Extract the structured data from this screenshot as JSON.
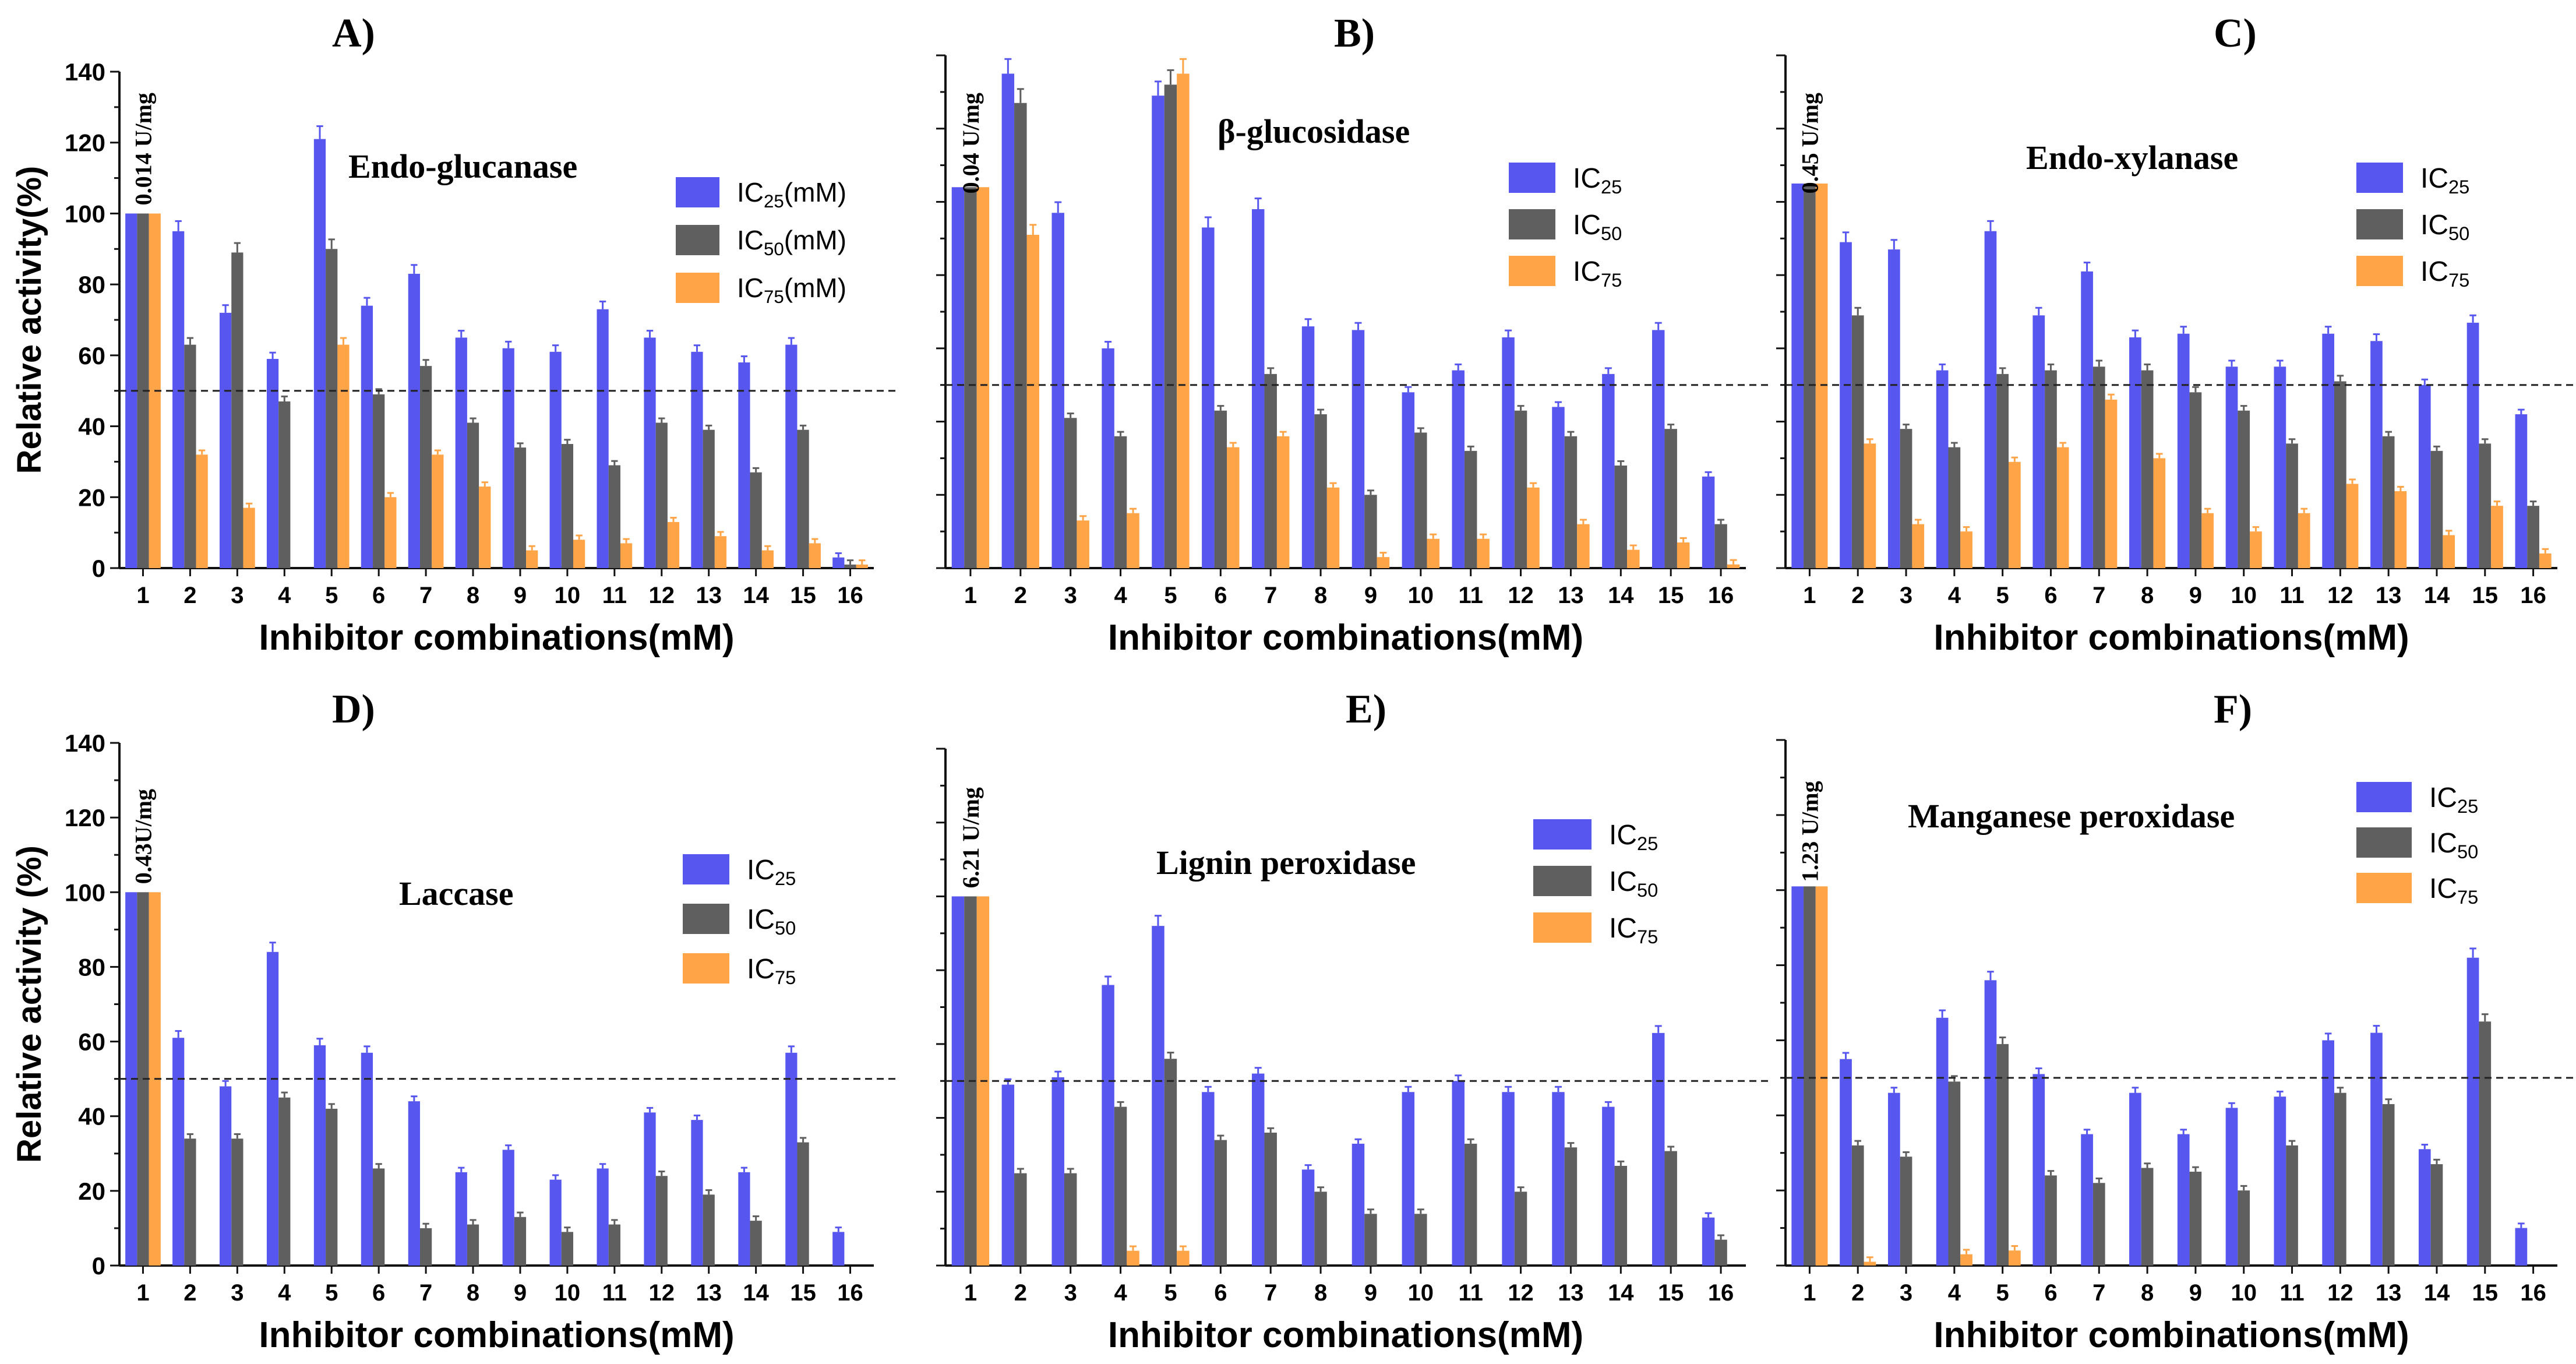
{
  "colors": {
    "ic25": "#5757f0",
    "ic50": "#5f5f5f",
    "ic75": "#ffa447",
    "axis": "#111111",
    "ref": "#222222"
  },
  "common": {
    "xlabel": "Inhibitor combinations(mM)",
    "ylabel_top": "Relative activity(%)",
    "ylabel_bottom": "Relative activity (%)",
    "categories": [
      "1",
      "2",
      "3",
      "4",
      "5",
      "6",
      "7",
      "8",
      "9",
      "10",
      "11",
      "12",
      "13",
      "14",
      "15",
      "16"
    ],
    "yticks": [
      "0",
      "20",
      "40",
      "60",
      "80",
      "100",
      "120",
      "140"
    ],
    "ylim": [
      0,
      140
    ],
    "reference_line": 50
  },
  "chart_data": [
    {
      "panel": "A)",
      "type": "bar",
      "title": "Endo-glucanase",
      "specific_activity": "0.014 U/mg",
      "legend": [
        "IC25(mM)",
        "IC50(mM)",
        "IC75(mM)"
      ],
      "legend_parts": [
        [
          "IC",
          "25",
          "(mM)"
        ],
        [
          "IC",
          "50",
          "(mM)"
        ],
        [
          "IC",
          "75",
          "(mM)"
        ]
      ],
      "series": [
        {
          "name": "IC25",
          "values": [
            100,
            95,
            72,
            59,
            121,
            74,
            83,
            65,
            62,
            61,
            73,
            65,
            61,
            58,
            63,
            3
          ]
        },
        {
          "name": "IC50",
          "values": [
            100,
            63,
            89,
            47,
            90,
            49,
            57,
            41,
            34,
            35,
            29,
            41,
            39,
            27,
            39,
            1
          ]
        },
        {
          "name": "IC75",
          "values": [
            100,
            32,
            17,
            0,
            63,
            20,
            32,
            23,
            5,
            8,
            7,
            13,
            9,
            5,
            7,
            1
          ]
        }
      ]
    },
    {
      "panel": "B)",
      "type": "bar",
      "title": "β-glucosidase",
      "specific_activity": "0.04 U/mg",
      "legend": [
        "IC25",
        "IC50",
        "IC75"
      ],
      "legend_parts": [
        [
          "IC",
          "25",
          ""
        ],
        [
          "IC",
          "50",
          ""
        ],
        [
          "IC",
          "75",
          ""
        ]
      ],
      "series": [
        {
          "name": "IC25",
          "values": [
            104,
            135,
            97,
            60,
            129,
            93,
            98,
            66,
            65,
            48,
            54,
            63,
            44,
            53,
            65,
            25
          ]
        },
        {
          "name": "IC50",
          "values": [
            104,
            127,
            41,
            36,
            132,
            43,
            53,
            42,
            20,
            37,
            32,
            43,
            36,
            28,
            38,
            12
          ]
        },
        {
          "name": "IC75",
          "values": [
            104,
            91,
            13,
            15,
            135,
            33,
            36,
            22,
            3,
            8,
            8,
            22,
            12,
            5,
            7,
            1
          ]
        }
      ]
    },
    {
      "panel": "C)",
      "type": "bar",
      "title": "Endo-xylanase",
      "specific_activity": "0.45 U/mg",
      "legend": [
        "IC25",
        "IC50",
        "IC75"
      ],
      "legend_parts": [
        [
          "IC",
          "25",
          ""
        ],
        [
          "IC",
          "50",
          ""
        ],
        [
          "IC",
          "75",
          ""
        ]
      ],
      "series": [
        {
          "name": "IC25",
          "values": [
            105,
            89,
            87,
            54,
            92,
            69,
            81,
            63,
            64,
            55,
            55,
            64,
            62,
            50,
            67,
            42
          ]
        },
        {
          "name": "IC50",
          "values": [
            105,
            69,
            38,
            33,
            53,
            54,
            55,
            54,
            48,
            43,
            34,
            51,
            36,
            32,
            34,
            17
          ]
        },
        {
          "name": "IC75",
          "values": [
            105,
            34,
            12,
            10,
            29,
            33,
            46,
            30,
            15,
            10,
            15,
            23,
            21,
            9,
            17,
            4
          ]
        }
      ]
    },
    {
      "panel": "D)",
      "type": "bar",
      "title": "Laccase",
      "specific_activity": "0.43U/mg",
      "legend": [
        "IC25",
        "IC50",
        "IC75"
      ],
      "legend_parts": [
        [
          "IC",
          "25",
          ""
        ],
        [
          "IC",
          "50",
          ""
        ],
        [
          "IC",
          "75",
          ""
        ]
      ],
      "series": [
        {
          "name": "IC25",
          "values": [
            100,
            61,
            48,
            84,
            59,
            57,
            44,
            25,
            31,
            23,
            26,
            41,
            39,
            25,
            57,
            9
          ]
        },
        {
          "name": "IC50",
          "values": [
            100,
            34,
            34,
            45,
            42,
            26,
            10,
            11,
            13,
            9,
            11,
            24,
            19,
            12,
            33,
            0
          ]
        },
        {
          "name": "IC75",
          "values": [
            100,
            0,
            0,
            0,
            0,
            0,
            0,
            0,
            0,
            0,
            0,
            0,
            0,
            0,
            0,
            0
          ]
        }
      ]
    },
    {
      "panel": "E)",
      "type": "bar",
      "title": "Lignin peroxidase",
      "specific_activity": "6.21 U/mg",
      "legend": [
        "IC25",
        "IC50",
        "IC75"
      ],
      "legend_parts": [
        [
          "IC",
          "25",
          ""
        ],
        [
          "IC",
          "50",
          ""
        ],
        [
          "IC",
          "75",
          ""
        ]
      ],
      "series": [
        {
          "name": "IC25",
          "values": [
            100,
            49,
            51,
            76,
            92,
            47,
            52,
            26,
            33,
            47,
            50,
            47,
            47,
            43,
            63,
            13
          ]
        },
        {
          "name": "IC50",
          "values": [
            100,
            25,
            25,
            43,
            56,
            34,
            36,
            20,
            14,
            14,
            33,
            20,
            32,
            27,
            31,
            7
          ]
        },
        {
          "name": "IC75",
          "values": [
            100,
            0,
            0,
            4,
            4,
            0,
            0,
            0,
            0,
            0,
            0,
            0,
            0,
            0,
            0,
            0
          ]
        }
      ]
    },
    {
      "panel": "F)",
      "type": "bar",
      "title": "Manganese peroxidase",
      "specific_activity": "1.23 U/mg",
      "legend": [
        "IC25",
        "IC50",
        "IC75"
      ],
      "legend_parts": [
        [
          "IC",
          "25",
          ""
        ],
        [
          "IC",
          "50",
          ""
        ],
        [
          "IC",
          "75",
          ""
        ]
      ],
      "series": [
        {
          "name": "IC25",
          "values": [
            101,
            55,
            46,
            66,
            76,
            51,
            35,
            46,
            35,
            42,
            45,
            60,
            62,
            31,
            82,
            10
          ]
        },
        {
          "name": "IC50",
          "values": [
            101,
            32,
            29,
            49,
            59,
            24,
            22,
            26,
            25,
            20,
            32,
            46,
            43,
            27,
            65,
            0
          ]
        },
        {
          "name": "IC75",
          "values": [
            101,
            1,
            0,
            3,
            4,
            0,
            0,
            0,
            0,
            0,
            0,
            0,
            0,
            0,
            0,
            0
          ]
        }
      ]
    }
  ]
}
